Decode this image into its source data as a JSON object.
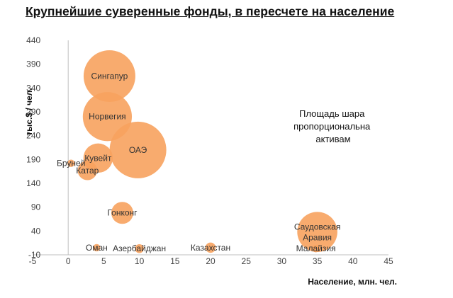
{
  "chart_data": {
    "type": "bubble",
    "title": "Крупнейшие суверенные фонды, в пересчете на население",
    "xlabel": "Население, млн. чел.",
    "ylabel": "тыс.$ / чел.",
    "xlim": [
      -5,
      45
    ],
    "ylim": [
      -10,
      440
    ],
    "x_ticks": [
      -5,
      0,
      5,
      10,
      15,
      20,
      25,
      30,
      35,
      40,
      45
    ],
    "y_ticks": [
      -10,
      40,
      90,
      140,
      190,
      240,
      290,
      340,
      390,
      440
    ],
    "bubble_color": "#F7A25E",
    "note_lines": [
      "Площадь шара",
      "пропорциональна",
      "активам"
    ],
    "points": [
      {
        "label": "Сингапур",
        "x": 5.8,
        "y": 365,
        "size": 100
      },
      {
        "label": "Норвегия",
        "x": 5.5,
        "y": 280,
        "size": 90
      },
      {
        "label": "ОАЭ",
        "x": 9.8,
        "y": 210,
        "size": 120
      },
      {
        "label": "Кувейт",
        "x": 4.2,
        "y": 193,
        "size": 32
      },
      {
        "label": "Бруней",
        "x": 0.4,
        "y": 182,
        "size": 2
      },
      {
        "label": "Катар",
        "x": 2.7,
        "y": 167,
        "size": 14
      },
      {
        "label": "Гонконг",
        "x": 7.6,
        "y": 78,
        "size": 18
      },
      {
        "label": "Саудовская Аравия",
        "x": 35.0,
        "y": 38,
        "size": 60
      },
      {
        "label": "Малайзия",
        "x": 34.8,
        "y": 3,
        "size": 2
      },
      {
        "label": "Казахстан",
        "x": 20.0,
        "y": 5,
        "size": 4
      },
      {
        "label": "Азербайджан",
        "x": 10.0,
        "y": 3,
        "size": 3
      },
      {
        "label": "Оман",
        "x": 4.0,
        "y": 5,
        "size": 2
      }
    ]
  }
}
